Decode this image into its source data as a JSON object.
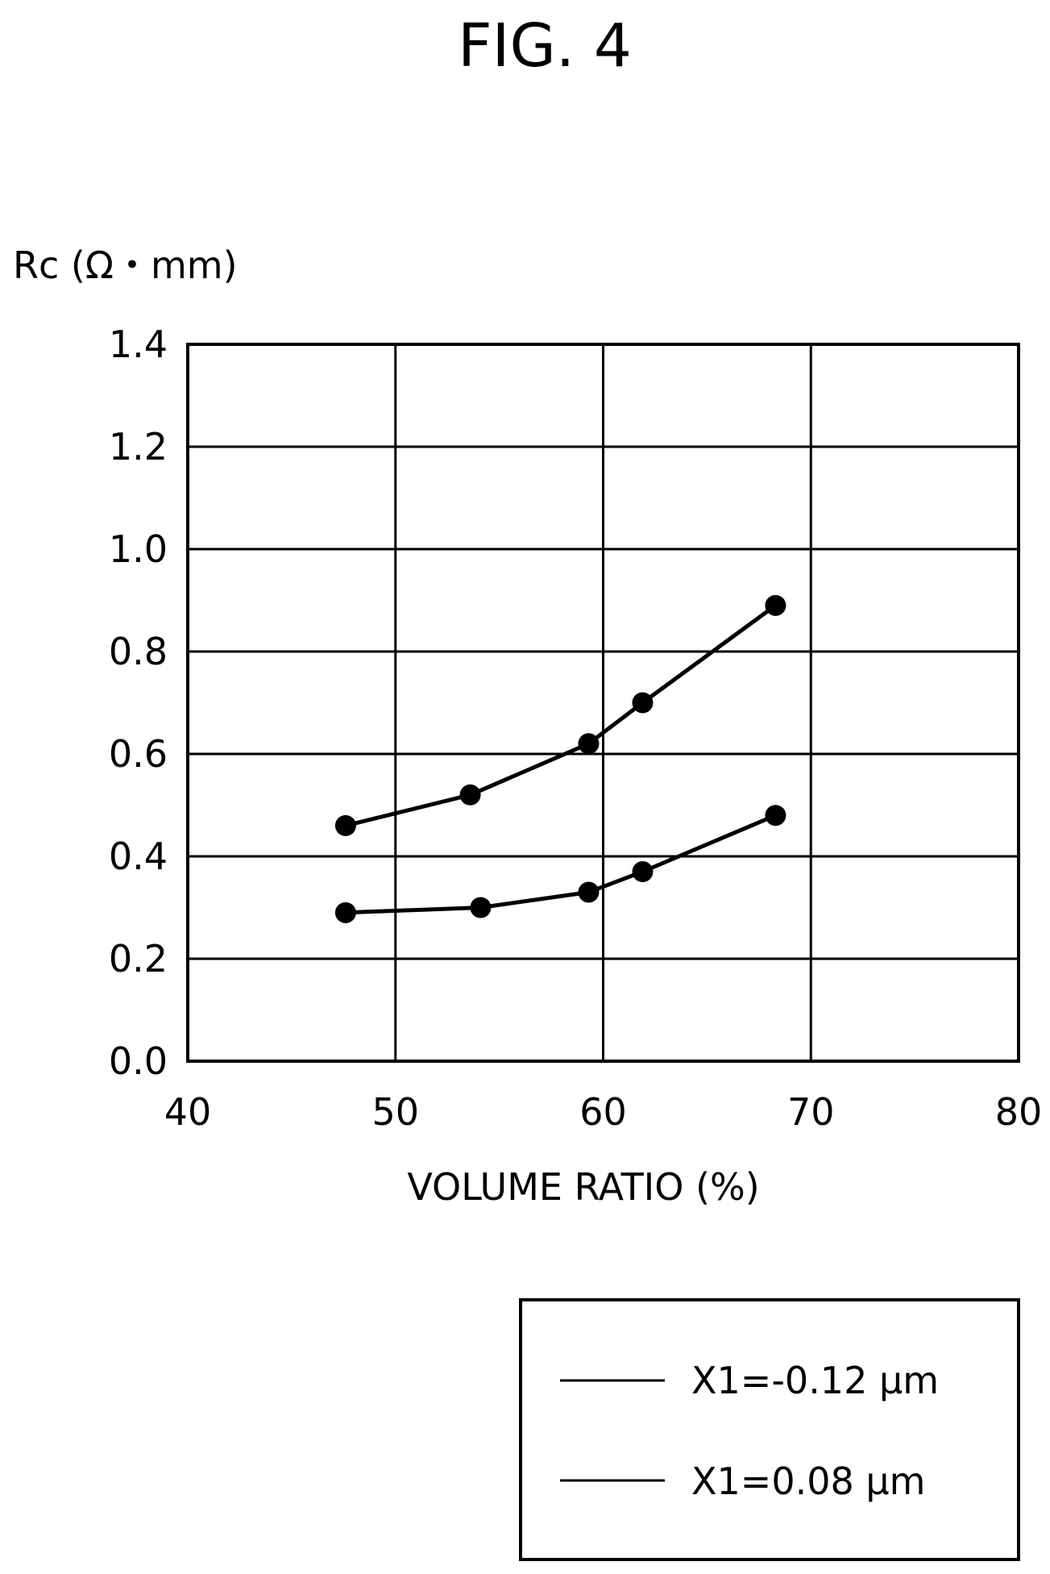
{
  "figure_label": "FIG. 4",
  "chart_data": {
    "type": "line",
    "ylabel": "Rc (Ω・mm)",
    "xlabel": "VOLUME RATIO (%)",
    "xlim": [
      40,
      80
    ],
    "ylim": [
      0.0,
      1.4
    ],
    "x_ticks": [
      "40",
      "50",
      "60",
      "70",
      "80"
    ],
    "y_ticks": [
      "0.0",
      "0.2",
      "0.4",
      "0.6",
      "0.8",
      "1.0",
      "1.2",
      "1.4"
    ],
    "grid": true,
    "legend_position": "bottom-right",
    "series": [
      {
        "name": "X1=-0.12 μm",
        "x": [
          47.6,
          53.6,
          59.3,
          61.9,
          68.3
        ],
        "y": [
          0.46,
          0.52,
          0.62,
          0.7,
          0.89
        ]
      },
      {
        "name": "X1=0.08 μm",
        "x": [
          47.6,
          54.1,
          59.3,
          61.9,
          68.3
        ],
        "y": [
          0.29,
          0.3,
          0.33,
          0.37,
          0.48
        ]
      }
    ]
  }
}
